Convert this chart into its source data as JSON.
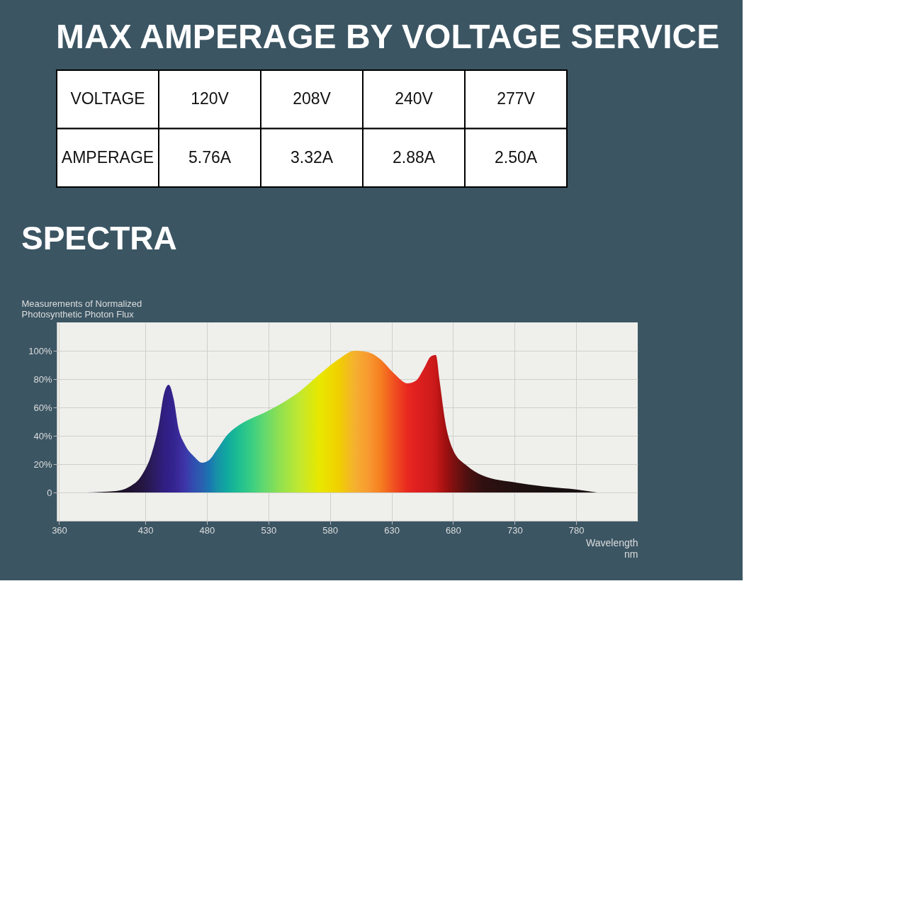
{
  "chart_data": [
    {
      "type": "other",
      "title": "MAX AMPERAGE BY VOLTAGE SERVICE",
      "annotations": [
        "VOLTAGE",
        "120V",
        "208V",
        "240V",
        "277V",
        "AMPERAGE",
        "5.76A",
        "3.32A",
        "2.88A",
        "2.50A"
      ]
    },
    {
      "type": "area",
      "title": "SPECTRA",
      "ylabel": "Measurements of Normalized\nPhotosynthetic Photon Flux",
      "xlabel": "Wavelength\nnm",
      "x": [
        382,
        406,
        417,
        427,
        435,
        441,
        445,
        449,
        453,
        457,
        462,
        470,
        476,
        482,
        488,
        496,
        507,
        518,
        526,
        539,
        555,
        571,
        587,
        600,
        611,
        621,
        632,
        643,
        650,
        656,
        662,
        666,
        669,
        674,
        680,
        691,
        704,
        731,
        757,
        781,
        797
      ],
      "values": [
        0,
        1,
        4,
        12,
        27,
        48,
        69,
        76,
        66,
        45,
        34,
        25,
        21,
        23,
        30,
        40,
        48,
        53,
        56,
        62,
        71,
        83,
        94,
        100,
        99,
        94,
        84,
        77,
        79,
        87,
        96,
        97,
        79,
        48,
        30,
        19,
        12,
        7,
        4,
        2,
        0
      ],
      "colors": [
        "#1a1020",
        "#1a1020",
        "#1e1230",
        "#241640",
        "#2a1a5a",
        "#2e1d70",
        "#301f80",
        "#32208a",
        "#34248f",
        "#3a2a9a",
        "#3d35a8",
        "#3050b0",
        "#2a60b0",
        "#1a75b0",
        "#1890a8",
        "#10a8a0",
        "#20c090",
        "#40d080",
        "#60d870",
        "#90e050",
        "#c0e830",
        "#e8e800",
        "#f0d000",
        "#f5b030",
        "#f89a30",
        "#f57f20",
        "#f05020",
        "#e82820",
        "#e02020",
        "#d81e1e",
        "#d01c1c",
        "#c81818",
        "#b81515",
        "#a01010",
        "#801010",
        "#501010",
        "#301010",
        "#201010",
        "#181010",
        "#181010",
        "#181010"
      ],
      "xlim": [
        358,
        830
      ],
      "ylim": [
        -20,
        120
      ],
      "xticks": [
        360,
        430,
        480,
        530,
        580,
        630,
        680,
        730,
        780
      ],
      "yticks": [
        {
          "value": 0,
          "label": "0"
        },
        {
          "value": 20,
          "label": "20%"
        },
        {
          "value": 40,
          "label": "40%"
        },
        {
          "value": 60,
          "label": "60%"
        },
        {
          "value": 80,
          "label": "80%"
        },
        {
          "value": 100,
          "label": "100%"
        }
      ],
      "grid": true
    }
  ]
}
